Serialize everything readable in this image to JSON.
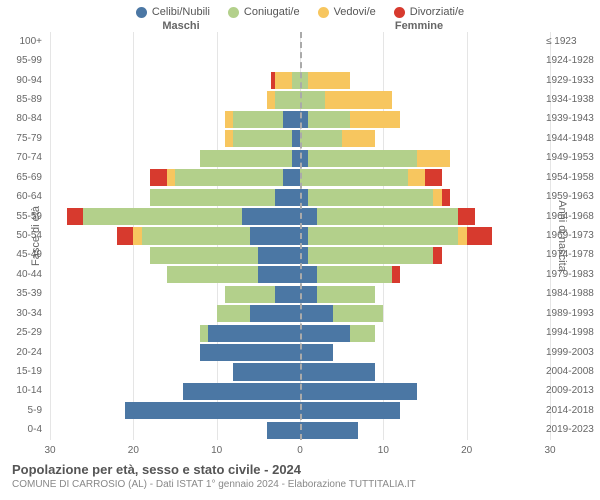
{
  "legend": {
    "items": [
      {
        "label": "Celibi/Nubili",
        "color": "#4b77a4"
      },
      {
        "label": "Coniugati/e",
        "color": "#b3d08b"
      },
      {
        "label": "Vedovi/e",
        "color": "#f7c65f"
      },
      {
        "label": "Divorziati/e",
        "color": "#d73a2e"
      }
    ]
  },
  "headers": {
    "left": "Maschi",
    "right": "Femmine"
  },
  "axis": {
    "left_title": "Fasce di età",
    "right_title": "Anni di nascita",
    "xmax": 30,
    "xtick_step": 10,
    "xticks_left": [
      30,
      20,
      10,
      0
    ],
    "xticks_right": [
      0,
      10,
      20,
      30
    ],
    "grid_color": "#e5e5e5",
    "center_color": "#aaaaaa"
  },
  "chart": {
    "type": "population-pyramid",
    "bar_gap_ratio": 0.12,
    "age_labels": [
      "0-4",
      "5-9",
      "10-14",
      "15-19",
      "20-24",
      "25-29",
      "30-34",
      "35-39",
      "40-44",
      "45-49",
      "50-54",
      "55-59",
      "60-64",
      "65-69",
      "70-74",
      "75-79",
      "80-84",
      "85-89",
      "90-94",
      "95-99",
      "100+"
    ],
    "birth_labels": [
      "2019-2023",
      "2014-2018",
      "2009-2013",
      "2004-2008",
      "1999-2003",
      "1994-1998",
      "1989-1993",
      "1984-1988",
      "1979-1983",
      "1974-1978",
      "1969-1973",
      "1964-1968",
      "1959-1963",
      "1954-1958",
      "1949-1953",
      "1944-1948",
      "1939-1943",
      "1934-1938",
      "1929-1933",
      "1924-1928",
      "≤ 1923"
    ],
    "colors": {
      "celibi": "#4b77a4",
      "coniugati": "#b3d08b",
      "vedovi": "#f7c65f",
      "divorziati": "#d73a2e"
    },
    "male": [
      {
        "celibi": 4,
        "coniugati": 0,
        "vedovi": 0,
        "divorziati": 0
      },
      {
        "celibi": 21,
        "coniugati": 0,
        "vedovi": 0,
        "divorziati": 0
      },
      {
        "celibi": 14,
        "coniugati": 0,
        "vedovi": 0,
        "divorziati": 0
      },
      {
        "celibi": 8,
        "coniugati": 0,
        "vedovi": 0,
        "divorziati": 0
      },
      {
        "celibi": 12,
        "coniugati": 0,
        "vedovi": 0,
        "divorziati": 0
      },
      {
        "celibi": 11,
        "coniugati": 1,
        "vedovi": 0,
        "divorziati": 0
      },
      {
        "celibi": 6,
        "coniugati": 4,
        "vedovi": 0,
        "divorziati": 0
      },
      {
        "celibi": 3,
        "coniugati": 6,
        "vedovi": 0,
        "divorziati": 0
      },
      {
        "celibi": 5,
        "coniugati": 11,
        "vedovi": 0,
        "divorziati": 0
      },
      {
        "celibi": 5,
        "coniugati": 13,
        "vedovi": 0,
        "divorziati": 0
      },
      {
        "celibi": 6,
        "coniugati": 13,
        "vedovi": 1,
        "divorziati": 2
      },
      {
        "celibi": 7,
        "coniugati": 19,
        "vedovi": 0,
        "divorziati": 2
      },
      {
        "celibi": 3,
        "coniugati": 15,
        "vedovi": 0,
        "divorziati": 0
      },
      {
        "celibi": 2,
        "coniugati": 13,
        "vedovi": 1,
        "divorziati": 2
      },
      {
        "celibi": 1,
        "coniugati": 11,
        "vedovi": 0,
        "divorziati": 0
      },
      {
        "celibi": 1,
        "coniugati": 7,
        "vedovi": 1,
        "divorziati": 0
      },
      {
        "celibi": 2,
        "coniugati": 6,
        "vedovi": 1,
        "divorziati": 0
      },
      {
        "celibi": 0,
        "coniugati": 3,
        "vedovi": 1,
        "divorziati": 0
      },
      {
        "celibi": 0,
        "coniugati": 1,
        "vedovi": 2,
        "divorziati": 0.5
      },
      {
        "celibi": 0,
        "coniugati": 0,
        "vedovi": 0,
        "divorziati": 0
      },
      {
        "celibi": 0,
        "coniugati": 0,
        "vedovi": 0,
        "divorziati": 0
      }
    ],
    "female": [
      {
        "celibi": 7,
        "coniugati": 0,
        "vedovi": 0,
        "divorziati": 0
      },
      {
        "celibi": 12,
        "coniugati": 0,
        "vedovi": 0,
        "divorziati": 0
      },
      {
        "celibi": 14,
        "coniugati": 0,
        "vedovi": 0,
        "divorziati": 0
      },
      {
        "celibi": 9,
        "coniugati": 0,
        "vedovi": 0,
        "divorziati": 0
      },
      {
        "celibi": 4,
        "coniugati": 0,
        "vedovi": 0,
        "divorziati": 0
      },
      {
        "celibi": 6,
        "coniugati": 3,
        "vedovi": 0,
        "divorziati": 0
      },
      {
        "celibi": 4,
        "coniugati": 6,
        "vedovi": 0,
        "divorziati": 0
      },
      {
        "celibi": 2,
        "coniugati": 7,
        "vedovi": 0,
        "divorziati": 0
      },
      {
        "celibi": 2,
        "coniugati": 9,
        "vedovi": 0,
        "divorziati": 1
      },
      {
        "celibi": 1,
        "coniugati": 15,
        "vedovi": 0,
        "divorziati": 1
      },
      {
        "celibi": 1,
        "coniugati": 18,
        "vedovi": 1,
        "divorziati": 3
      },
      {
        "celibi": 2,
        "coniugati": 17,
        "vedovi": 0,
        "divorziati": 2
      },
      {
        "celibi": 1,
        "coniugati": 15,
        "vedovi": 1,
        "divorziati": 1
      },
      {
        "celibi": 0,
        "coniugati": 13,
        "vedovi": 2,
        "divorziati": 2
      },
      {
        "celibi": 1,
        "coniugati": 13,
        "vedovi": 4,
        "divorziati": 0
      },
      {
        "celibi": 0,
        "coniugati": 5,
        "vedovi": 4,
        "divorziati": 0
      },
      {
        "celibi": 1,
        "coniugati": 5,
        "vedovi": 6,
        "divorziati": 0
      },
      {
        "celibi": 0,
        "coniugati": 3,
        "vedovi": 8,
        "divorziati": 0
      },
      {
        "celibi": 0,
        "coniugati": 1,
        "vedovi": 5,
        "divorziati": 0
      },
      {
        "celibi": 0,
        "coniugati": 0,
        "vedovi": 0,
        "divorziati": 0
      },
      {
        "celibi": 0,
        "coniugati": 0,
        "vedovi": 0,
        "divorziati": 0
      }
    ]
  },
  "footer": {
    "title": "Popolazione per età, sesso e stato civile - 2024",
    "subtitle": "COMUNE DI CARROSIO (AL) - Dati ISTAT 1° gennaio 2024 - Elaborazione TUTTITALIA.IT"
  }
}
